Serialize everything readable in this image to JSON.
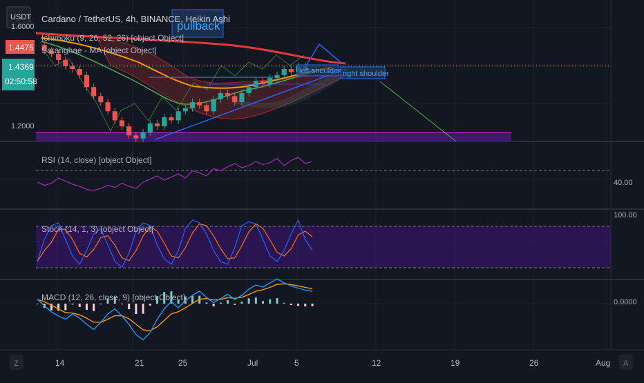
{
  "header": {
    "symbol_title": "Cardano / TetherUS, 4h, BINANCE, Heikin Ashi",
    "quote_currency": "USDT",
    "indicators": [
      "Ichimoku (9, 26, 52, 26) [object Object]",
      "Saranghae - MA [object Object]"
    ]
  },
  "annotations": {
    "pullback": "pullback\"",
    "left_shoulder": "left shoulder",
    "right_shoulder": "right shoulder"
  },
  "price_scale": {
    "top_label": "1.6000",
    "bottom_label": "1.2000",
    "last_price": "1.4475",
    "current_price": "1.4369",
    "countdown": "02:50:58"
  },
  "panes": {
    "rsi": {
      "title": "RSI (14, close) [object Object]",
      "label": "40.00"
    },
    "stoch": {
      "title": "Stoch (14, 1, 3) [object Object]",
      "label": "100.00"
    },
    "macd": {
      "title": "MACD (12, 26, close, 9) [object Object]",
      "label": "0.0000"
    }
  },
  "time_axis": {
    "labels": [
      "14",
      "21",
      "25",
      "Jul",
      "5",
      "12",
      "19",
      "26",
      "Aug"
    ],
    "left_button": "Z",
    "right_button": "A"
  },
  "colors": {
    "background": "#131722",
    "grid": "#1e222d",
    "up": "#26a69a",
    "down": "#ef5350",
    "rsi": "#9c27b0",
    "stoch_k": "#2962ff",
    "stoch_d": "#ff6d00",
    "macd": "#2196f3",
    "signal": "#ff9800",
    "ma_slow": "#e53935",
    "ma_mid": "#ff9800",
    "ma_fast": "#4caf50"
  },
  "chart_data": {
    "type": "line",
    "interval": "4h",
    "price_ylim": [
      1.2,
      1.6
    ],
    "candles": {
      "up": 6,
      "values": [
        1.52,
        1.5,
        1.49,
        1.47,
        1.45,
        1.44,
        1.42,
        1.38,
        1.35,
        1.33,
        1.3,
        1.27,
        1.25,
        1.22,
        1.21,
        1.23,
        1.26,
        1.25,
        1.28,
        1.27,
        1.3,
        1.31,
        1.33,
        1.32,
        1.3,
        1.34,
        1.36,
        1.35,
        1.33,
        1.36,
        1.38,
        1.4,
        1.39,
        1.41,
        1.42,
        1.44,
        1.43,
        1.45,
        1.44,
        1.44
      ]
    },
    "rsi_values": [
      44,
      41,
      43,
      48,
      45,
      42,
      40,
      37,
      36,
      38,
      41,
      39,
      43,
      40,
      38,
      44,
      47,
      50,
      46,
      49,
      52,
      48,
      55,
      53,
      50,
      57,
      55,
      59,
      62,
      58,
      60,
      64,
      61,
      63,
      67,
      60,
      65,
      68,
      62,
      64
    ],
    "stoch_k": [
      20,
      60,
      85,
      90,
      60,
      30,
      15,
      40,
      70,
      80,
      50,
      20,
      10,
      35,
      75,
      90,
      85,
      50,
      25,
      15,
      40,
      80,
      95,
      90,
      70,
      40,
      20,
      15,
      45,
      85,
      92,
      88,
      60,
      30,
      20,
      40,
      70,
      95,
      60,
      40
    ],
    "macd_line": [
      0.004,
      -0.002,
      -0.008,
      -0.012,
      -0.015,
      -0.01,
      -0.014,
      -0.02,
      -0.025,
      -0.018,
      -0.01,
      -0.005,
      -0.012,
      -0.02,
      -0.03,
      -0.035,
      -0.028,
      -0.015,
      -0.005,
      0.002,
      -0.004,
      0.003,
      0.008,
      0.012,
      0.006,
      0.001,
      0.005,
      0.009,
      0.004,
      0.008,
      0.014,
      0.018,
      0.016,
      0.02,
      0.024,
      0.02,
      0.017,
      0.015,
      0.013,
      0.012
    ]
  }
}
